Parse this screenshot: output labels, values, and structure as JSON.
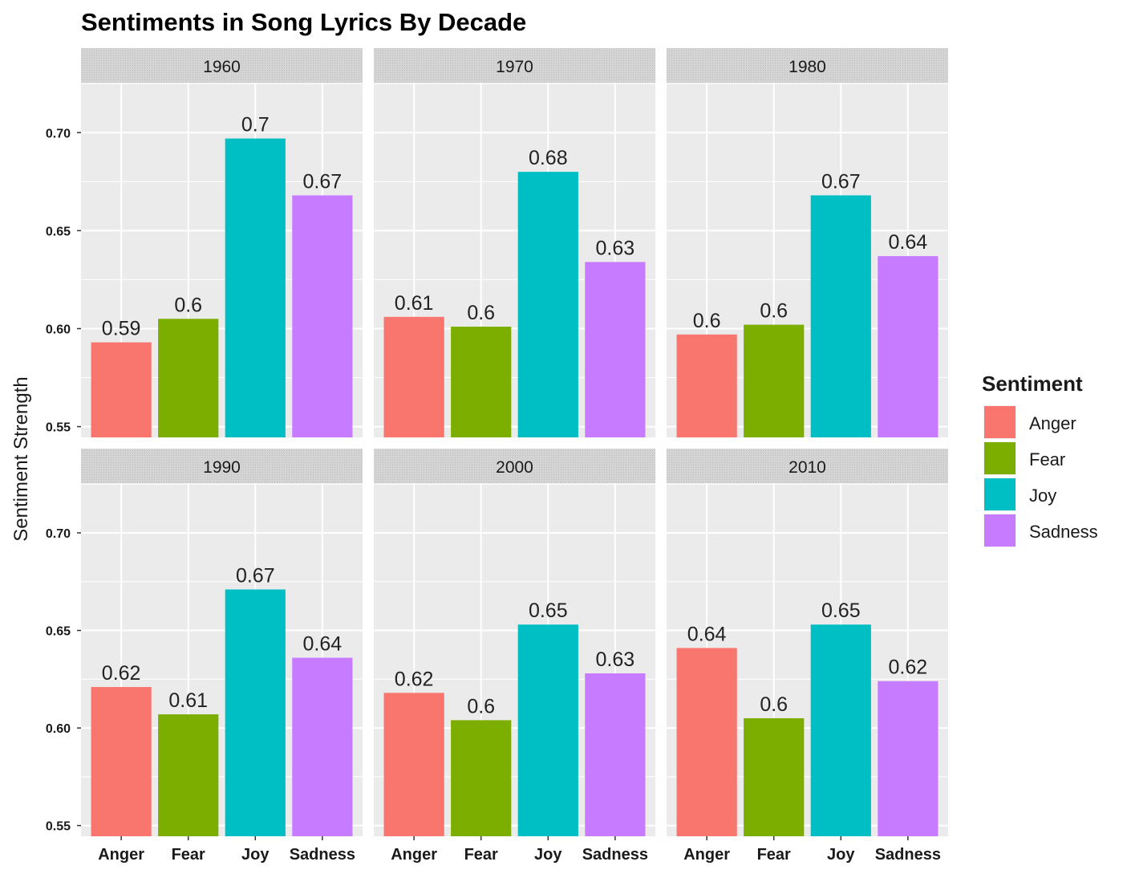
{
  "chart_data": {
    "type": "bar",
    "title": "Sentiments in Song Lyrics By Decade",
    "xlabel": "",
    "ylabel": "Sentiment Strength",
    "ylim": [
      0.5445,
      0.7255
    ],
    "yticks": [
      0.55,
      0.6,
      0.65,
      0.7
    ],
    "ytick_labels": [
      "0.55",
      "0.60",
      "0.65",
      "0.70"
    ],
    "grid": true,
    "legend_position": "right",
    "legend_title": "Sentiment",
    "categories": [
      "Anger",
      "Fear",
      "Joy",
      "Sadness"
    ],
    "colors": {
      "Anger": "#F8766D",
      "Fear": "#7CAE00",
      "Joy": "#00BFC4",
      "Sadness": "#C77CFF"
    },
    "facets": [
      {
        "label": "1960",
        "values": [
          0.593,
          0.605,
          0.697,
          0.668
        ],
        "labels": [
          "0.59",
          "0.6",
          "0.7",
          "0.67"
        ]
      },
      {
        "label": "1970",
        "values": [
          0.606,
          0.601,
          0.68,
          0.634
        ],
        "labels": [
          "0.61",
          "0.6",
          "0.68",
          "0.63"
        ]
      },
      {
        "label": "1980",
        "values": [
          0.597,
          0.602,
          0.668,
          0.637
        ],
        "labels": [
          "0.6",
          "0.6",
          "0.67",
          "0.64"
        ]
      },
      {
        "label": "1990",
        "values": [
          0.621,
          0.607,
          0.671,
          0.636
        ],
        "labels": [
          "0.62",
          "0.61",
          "0.67",
          "0.64"
        ]
      },
      {
        "label": "2000",
        "values": [
          0.618,
          0.604,
          0.653,
          0.628
        ],
        "labels": [
          "0.62",
          "0.6",
          "0.65",
          "0.63"
        ]
      },
      {
        "label": "2010",
        "values": [
          0.641,
          0.605,
          0.653,
          0.624
        ],
        "labels": [
          "0.64",
          "0.6",
          "0.65",
          "0.62"
        ]
      }
    ]
  }
}
